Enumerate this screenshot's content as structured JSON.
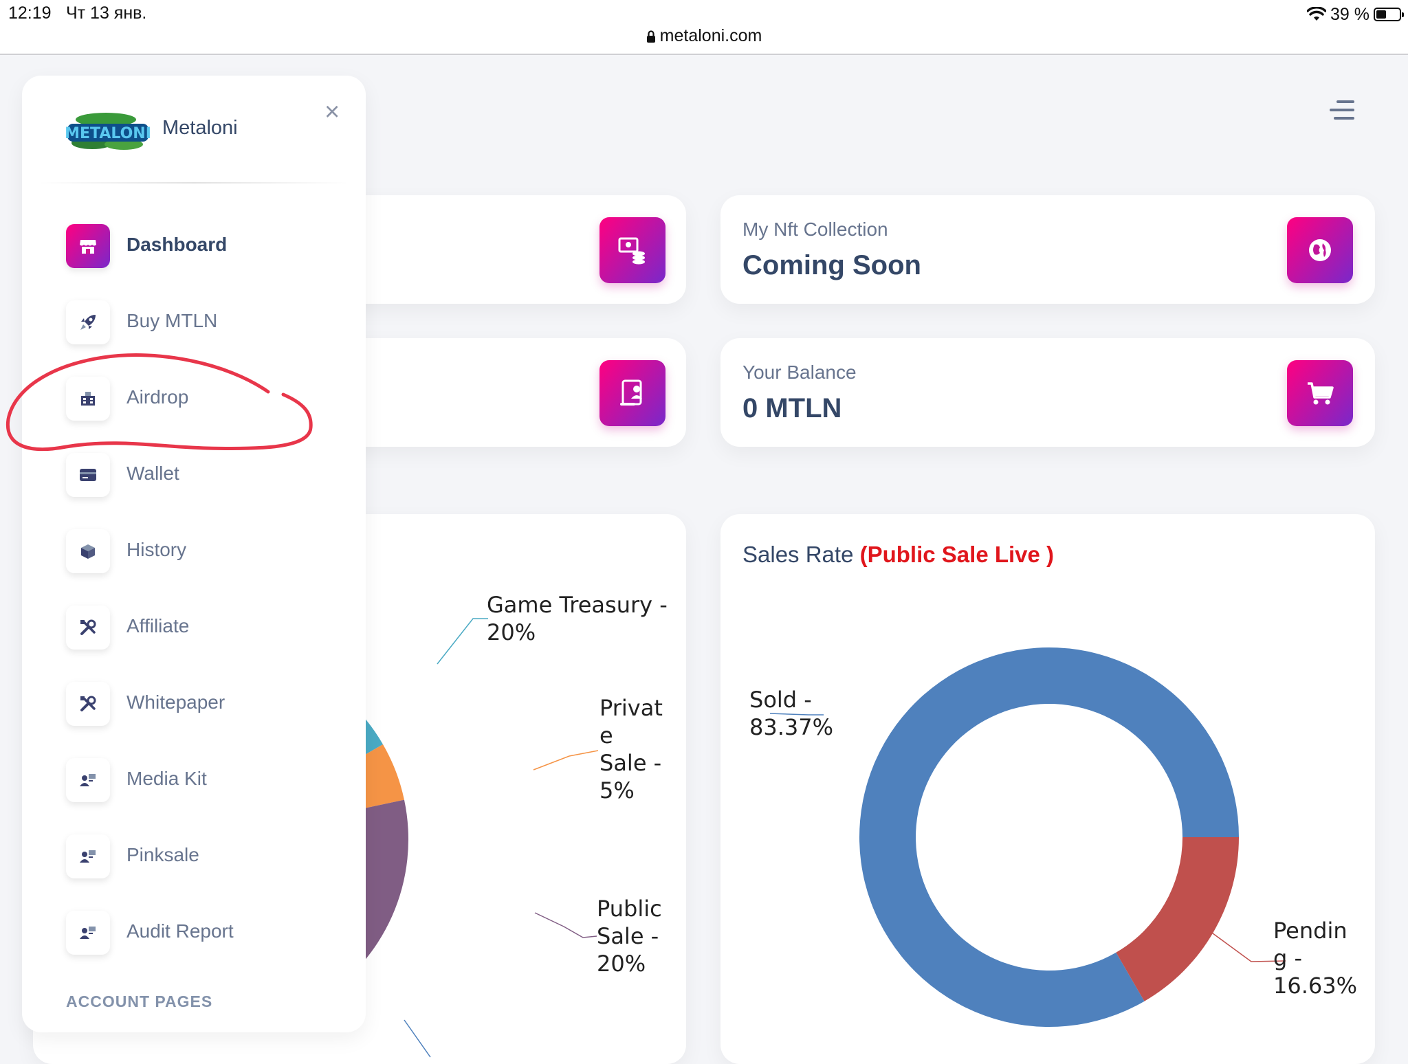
{
  "status_bar": {
    "time": "12:19",
    "date": "Чт 13 янв.",
    "battery": "39 %",
    "url": "metaloni.com"
  },
  "sidebar": {
    "brand": "Metaloni",
    "logo_text": "METALONI",
    "items": [
      {
        "label": "Dashboard",
        "icon": "shop-icon",
        "active": true
      },
      {
        "label": "Buy MTLN",
        "icon": "rocket-icon"
      },
      {
        "label": "Airdrop",
        "icon": "building-icon"
      },
      {
        "label": "Wallet",
        "icon": "credit-card-icon"
      },
      {
        "label": "History",
        "icon": "box-icon"
      },
      {
        "label": "Affiliate",
        "icon": "tools-icon"
      },
      {
        "label": "Whitepaper",
        "icon": "tools-icon"
      },
      {
        "label": "Media Kit",
        "icon": "user-badge-icon"
      },
      {
        "label": "Pinksale",
        "icon": "user-badge-icon"
      },
      {
        "label": "Audit Report",
        "icon": "user-badge-icon"
      }
    ],
    "section_heading": "ACCOUNT PAGES"
  },
  "cards": {
    "nft": {
      "label": "My Nft Collection",
      "value": "Coming Soon",
      "icon": "globe-icon"
    },
    "balance": {
      "label": "Your Balance",
      "value": "0 MTLN",
      "icon": "cart-icon"
    },
    "top_left_icon": "money-coins-icon",
    "mid_left_icon": "document-user-icon"
  },
  "charts": {
    "distribution_labels": {
      "game_treasury": [
        "Game Treasury -",
        "20%"
      ],
      "private_sale": [
        "Privat",
        "e",
        "Sale -",
        "5%"
      ],
      "public_sale": [
        "Public",
        "Sale -",
        "20%"
      ]
    },
    "sales": {
      "title": "Sales Rate",
      "title_highlight": "(Public Sale Live )",
      "sold_label": [
        "Sold -",
        "83.37%"
      ],
      "pending_label": [
        "Pendin",
        "g -",
        "16.63%"
      ]
    }
  },
  "chart_data": [
    {
      "type": "pie",
      "categories": [
        "Game Treasury",
        "Private Sale",
        "Public Sale"
      ],
      "values": [
        20,
        5,
        20
      ],
      "colors": [
        "#4aaac4",
        "#f59446",
        "#805d84"
      ],
      "other_visible_segment_color": "#4f81bd"
    },
    {
      "type": "pie",
      "title": "Sales Rate (Public Sale Live )",
      "categories": [
        "Sold",
        "Pending"
      ],
      "values": [
        83.37,
        16.63
      ],
      "colors": [
        "#4f81bd",
        "#c0504d"
      ]
    }
  ]
}
